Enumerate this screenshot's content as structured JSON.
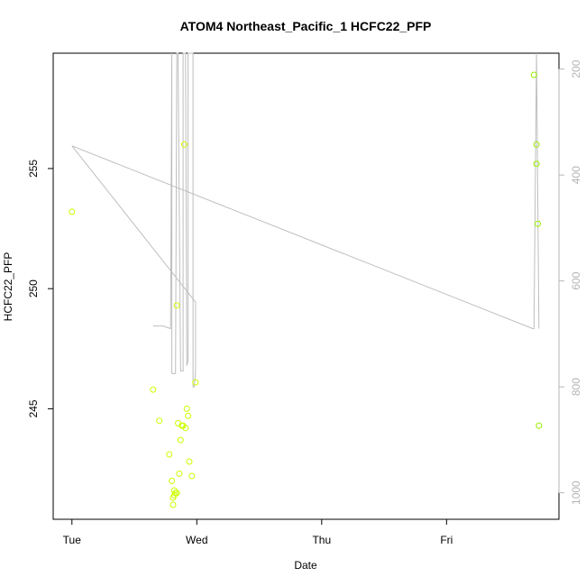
{
  "chart_data": {
    "type": "scatter",
    "title": "ATOM4 Northeast_Pacific_1 HCFC22_PFP",
    "xlabel": "Date",
    "ylabel": "HCFC22_PFP",
    "x_tick_labels": [
      "Tue",
      "Wed",
      "Thu",
      "Fri"
    ],
    "x_tick_days": [
      0,
      1,
      2,
      3
    ],
    "xlim_days": [
      -0.15,
      3.9
    ],
    "y_ticks": [
      245,
      250,
      255
    ],
    "ylim": [
      240.4,
      259.8
    ],
    "y2_ticks": [
      200,
      400,
      600,
      800,
      1000
    ],
    "y2lim": [
      1050,
      170
    ],
    "y2_reversed": true,
    "colors": {
      "points": "#ccff00",
      "points_right": "#99ee00",
      "pressure": "#bebebe",
      "right_axis": "#b4b4b4"
    },
    "series": [
      {
        "type": "scatter",
        "axis": "left",
        "x_days": [
          0.0,
          0.65,
          0.7,
          0.78,
          0.8,
          0.82,
          0.81,
          0.83,
          0.84,
          0.85,
          0.86,
          0.87,
          0.88,
          0.89,
          0.9,
          0.91,
          0.92,
          0.93,
          0.94,
          0.96,
          0.99,
          0.84,
          0.82,
          0.81,
          3.7,
          3.72,
          3.72,
          3.73,
          3.74
        ],
        "y": [
          253.2,
          245.8,
          244.5,
          243.1,
          242.0,
          241.4,
          241.3,
          241.5,
          241.5,
          244.4,
          242.3,
          243.7,
          244.3,
          244.3,
          256.0,
          244.2,
          245.0,
          244.7,
          242.8,
          242.2,
          246.1,
          249.3,
          241.6,
          241.0,
          258.9,
          256.0,
          255.2,
          252.7,
          244.3
        ]
      },
      {
        "type": "line",
        "axis": "right",
        "x_days": [
          0.0,
          0.99,
          0.99,
          0.98,
          0.97,
          0.97,
          0.93,
          0.93,
          0.92,
          0.91,
          0.89,
          0.89,
          0.87,
          0.85,
          0.84,
          0.83,
          0.8,
          0.8,
          0.79,
          0.73,
          0.65
        ],
        "y2": [
          345,
          640,
          770,
          800,
          800,
          170,
          170,
          750,
          760,
          170,
          170,
          770,
          770,
          170,
          170,
          775,
          775,
          170,
          690,
          685,
          685
        ]
      },
      {
        "type": "line",
        "axis": "right",
        "x_days": [
          0.0,
          3.69,
          3.7,
          3.72,
          3.72,
          3.74,
          3.74
        ],
        "y2": [
          345,
          690,
          690,
          170,
          170,
          690,
          690
        ]
      }
    ]
  }
}
